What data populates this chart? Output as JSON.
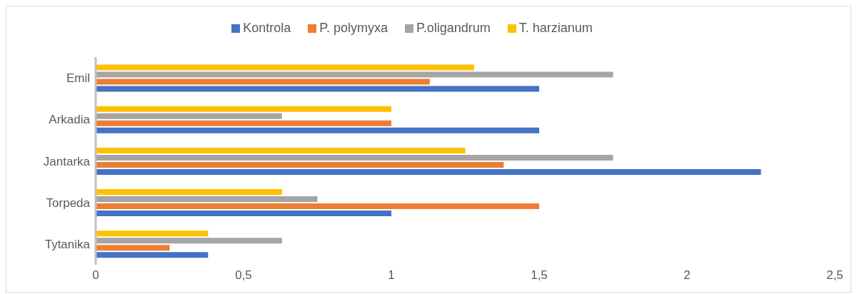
{
  "chart_data": {
    "type": "bar",
    "orientation": "horizontal",
    "categories": [
      "Emil",
      "Arkadia",
      "Jantarka",
      "Torpeda",
      "Tytanika"
    ],
    "series": [
      {
        "name": "T. harzianum",
        "color": "#ffc000",
        "values": [
          1.28,
          1.0,
          1.25,
          0.63,
          0.38
        ]
      },
      {
        "name": "P.oligandrum",
        "color": "#a5a5a5",
        "values": [
          1.75,
          0.63,
          1.75,
          0.75,
          0.63
        ]
      },
      {
        "name": "P. polymyxa",
        "color": "#ed7d31",
        "values": [
          1.13,
          1.0,
          1.38,
          1.5,
          0.25
        ]
      },
      {
        "name": "Kontrola",
        "color": "#4472c4",
        "values": [
          1.5,
          1.5,
          2.25,
          1.0,
          0.38
        ]
      }
    ],
    "xlim": [
      0,
      2.5
    ],
    "xticks": [
      0,
      {
        "value": 0.5,
        "label": "0,5"
      },
      1,
      {
        "value": 1.5,
        "label": "1,5"
      },
      2,
      {
        "value": 2.5,
        "label": "2,5"
      }
    ],
    "grid": false,
    "legend": "top"
  }
}
